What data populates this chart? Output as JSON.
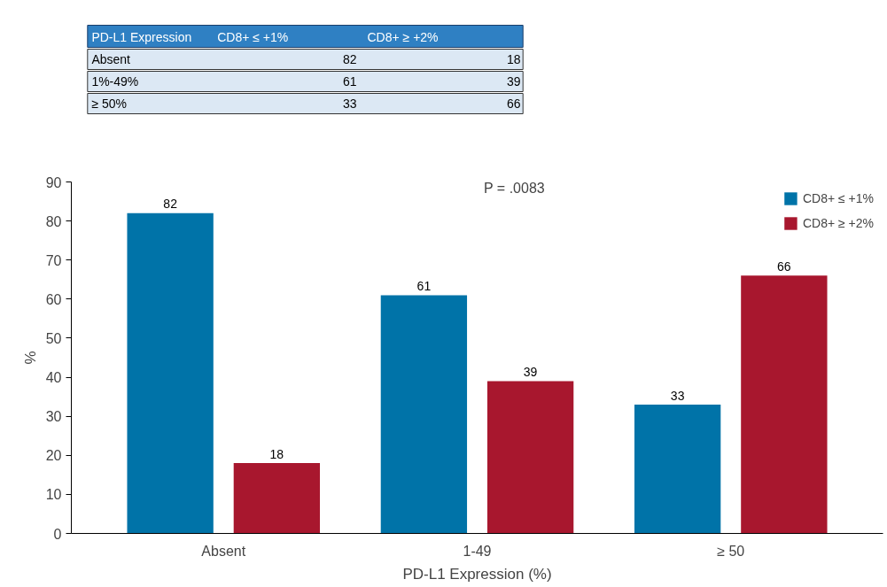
{
  "chart_data": [
    {
      "type": "other",
      "annotations": [
        "PD-L1 Expression",
        "CD8+ ≤ +1%",
        "CD8+ ≥ +2%",
        "Absent",
        "82",
        "18",
        "1%-49%",
        "61",
        "39",
        "≥ 50%",
        "33",
        "66"
      ]
    },
    {
      "type": "bar",
      "xlabel": "PD-L1 Expression (%)",
      "ylabel": "%",
      "categories": [
        "Absent",
        "1-49",
        "≥ 50"
      ],
      "series": [
        {
          "name": "CD8+ ≤ +1%",
          "color": "#0073a8",
          "values": [
            82,
            61,
            33
          ]
        },
        {
          "name": "CD8+ ≥ +2%",
          "color": "#a8172e",
          "values": [
            18,
            39,
            66
          ]
        }
      ],
      "ylim": [
        0,
        90
      ],
      "yticks": [
        0,
        10,
        20,
        30,
        40,
        50,
        60,
        70,
        80,
        90
      ],
      "grid": false,
      "legend": "top right",
      "data_labels": true,
      "annotations": [
        "P = .0083"
      ]
    }
  ]
}
